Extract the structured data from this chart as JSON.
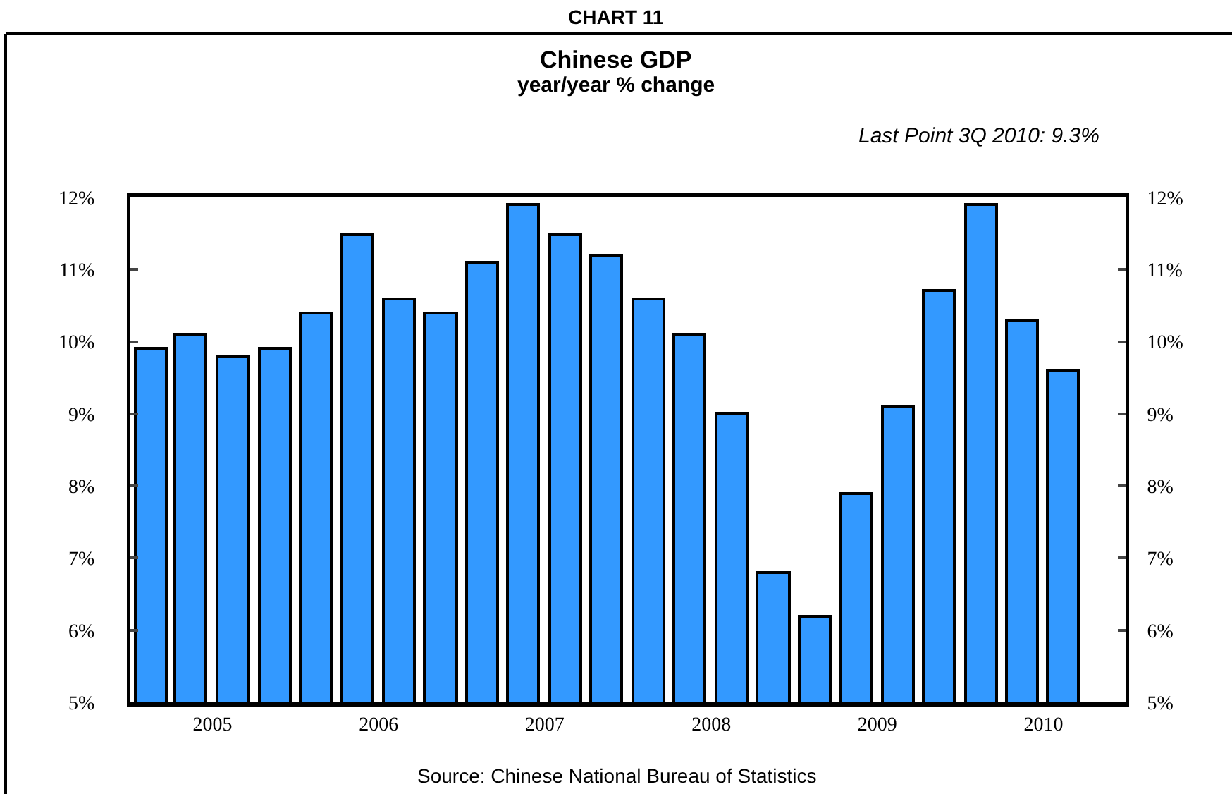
{
  "chart_data": {
    "type": "bar",
    "title": "Chinese GDP",
    "subtitle": "year/year % change",
    "annotations": [
      "CHART 11",
      "Last Point 3Q 2010: 9.3%",
      "Source: Chinese National Bureau of Statistics"
    ],
    "x": [
      "2005-02-15",
      "2005-05-15",
      "2005-08-15",
      "2005-11-15",
      "2006-02-15",
      "2006-05-15",
      "2006-08-15",
      "2006-11-15",
      "2007-02-15",
      "2007-05-15",
      "2007-08-15",
      "2007-11-15",
      "2008-02-15",
      "2008-05-15",
      "2008-08-15",
      "2008-11-15",
      "2009-02-15",
      "2009-05-15",
      "2009-08-15",
      "2009-11-15",
      "2010-02-15",
      "2010-05-15",
      "2010-08-15"
    ],
    "values": [
      9.9,
      10.1,
      9.8,
      9.9,
      10.4,
      11.5,
      10.6,
      10.4,
      11.1,
      11.9,
      11.5,
      11.2,
      10.6,
      10.1,
      9.0,
      6.8,
      6.2,
      7.9,
      9.1,
      10.7,
      11.9,
      10.3,
      9.6
    ],
    "color": "#3399ff",
    "xlim": [
      "2005-01-01",
      "2010-12-31"
    ],
    "xticks": [
      {
        "value": "2005-07-02",
        "label": "2005"
      },
      {
        "value": "2006-07-02",
        "label": "2006"
      },
      {
        "value": "2007-07-02",
        "label": "2007"
      },
      {
        "value": "2008-07-02",
        "label": "2008"
      },
      {
        "value": "2009-07-02",
        "label": "2009"
      },
      {
        "value": "2010-07-02",
        "label": "2010"
      }
    ],
    "ylim": [
      5,
      12
    ],
    "yticks": [
      {
        "value": 5,
        "label": "5%"
      },
      {
        "value": 6,
        "label": "6%"
      },
      {
        "value": 7,
        "label": "7%"
      },
      {
        "value": 8,
        "label": "8%"
      },
      {
        "value": 9,
        "label": "9%"
      },
      {
        "value": 10,
        "label": "10%"
      },
      {
        "value": 11,
        "label": "11%"
      },
      {
        "value": 12,
        "label": "12%"
      }
    ],
    "y2lim": [
      5,
      12
    ],
    "y2ticks": [
      {
        "value": 5,
        "label": "5%"
      },
      {
        "value": 6,
        "label": "6%"
      },
      {
        "value": 7,
        "label": "7%"
      },
      {
        "value": 8,
        "label": "8%"
      },
      {
        "value": 9,
        "label": "9%"
      },
      {
        "value": 10,
        "label": "10%"
      },
      {
        "value": 11,
        "label": "11%"
      },
      {
        "value": 12,
        "label": "12%"
      }
    ]
  }
}
